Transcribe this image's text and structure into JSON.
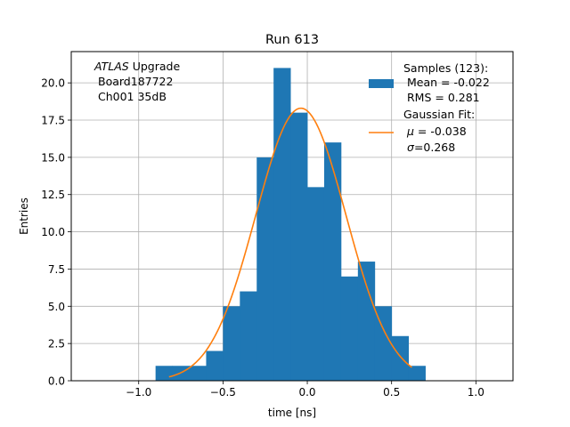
{
  "chart_data": {
    "type": "bar",
    "title": "Run 613",
    "xlabel": "time [ns]",
    "ylabel": "Entries",
    "xlim": [
      -1.4,
      1.22
    ],
    "ylim": [
      0,
      22.1
    ],
    "grid": true,
    "xticks": [
      -1.0,
      -0.5,
      0.0,
      0.5,
      1.0
    ],
    "xtick_labels": [
      "−1.0",
      "−0.5",
      "0.0",
      "0.5",
      "1.0"
    ],
    "yticks": [
      0.0,
      2.5,
      5.0,
      7.5,
      10.0,
      12.5,
      15.0,
      17.5,
      20.0
    ],
    "ytick_labels": [
      "0.0",
      "2.5",
      "5.0",
      "7.5",
      "10.0",
      "12.5",
      "15.0",
      "17.5",
      "20.0"
    ],
    "annotation": {
      "italic": "ATLAS",
      "rest": " Upgrade",
      "line2": "Board187722",
      "line3": "Ch001 35dB"
    },
    "histogram": {
      "color": "#1f77b4",
      "bin_edges": [
        -0.9,
        -0.8,
        -0.7,
        -0.6,
        -0.5,
        -0.4,
        -0.3,
        -0.2,
        -0.1,
        0.0,
        0.1,
        0.2,
        0.3,
        0.4,
        0.5,
        0.6,
        0.7
      ],
      "counts": [
        1,
        1,
        1,
        2,
        5,
        6,
        15,
        21,
        18,
        13,
        16,
        7,
        8,
        5,
        3,
        1
      ],
      "legend": [
        "Samples (123):",
        "Mean = -0.022",
        "RMS = 0.281"
      ]
    },
    "gaussian_fit": {
      "color": "#ff7f0e",
      "mu": -0.038,
      "sigma": 0.268,
      "amplitude": 18.3,
      "x_range": [
        -0.82,
        0.62
      ],
      "legend_title": "Gaussian Fit:",
      "legend_mu_symbol": "μ",
      "legend_mu_value": " = -0.038",
      "legend_sigma_symbol": "σ",
      "legend_sigma_value": "=0.268"
    }
  }
}
